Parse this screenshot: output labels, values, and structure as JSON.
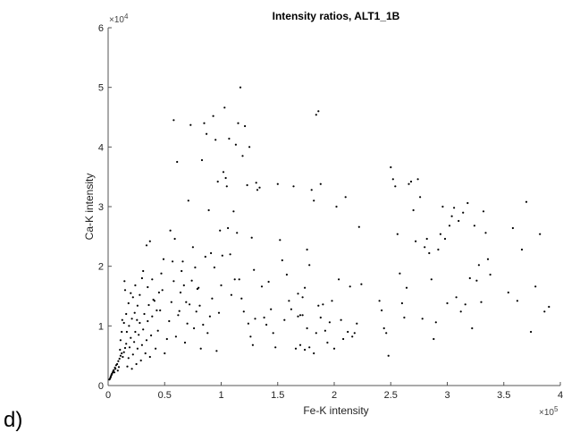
{
  "panel_label": "d)",
  "chart_data": {
    "type": "scatter",
    "title": "Intensity ratios, ALT1_1B",
    "xlabel": "Fe-K intensity",
    "ylabel": "Ca-K intensity",
    "x_multiplier": "×10^5",
    "y_multiplier": "×10^4",
    "x_multiplier_base": "×10",
    "x_multiplier_exp": "5",
    "y_multiplier_base": "×10",
    "y_multiplier_exp": "4",
    "xlim": [
      0,
      400000
    ],
    "ylim": [
      0,
      60000
    ],
    "xticks": [
      0,
      50000,
      100000,
      150000,
      200000,
      250000,
      300000,
      350000,
      400000
    ],
    "xtick_labels": [
      "0",
      "0.5",
      "1",
      "1.5",
      "2",
      "2.5",
      "3",
      "3.5",
      "4"
    ],
    "yticks": [
      0,
      10000,
      20000,
      30000,
      40000,
      50000,
      60000
    ],
    "ytick_labels": [
      "0",
      "1",
      "2",
      "3",
      "4",
      "5",
      "6"
    ],
    "marker_color": "#000000",
    "grid": false,
    "points": [
      [
        1000,
        1000
      ],
      [
        2000,
        1300
      ],
      [
        2500,
        1600
      ],
      [
        3000,
        1800
      ],
      [
        3500,
        2000
      ],
      [
        4000,
        2200
      ],
      [
        1500,
        1100
      ],
      [
        2200,
        1400
      ],
      [
        3200,
        1900
      ],
      [
        4500,
        2400
      ],
      [
        5000,
        2600
      ],
      [
        6000,
        3000
      ],
      [
        7000,
        3400
      ],
      [
        5500,
        2200
      ],
      [
        6500,
        2800
      ],
      [
        8000,
        3600
      ],
      [
        9000,
        4100
      ],
      [
        10000,
        4500
      ],
      [
        11000,
        5000
      ],
      [
        12000,
        5400
      ],
      [
        8500,
        2500
      ],
      [
        9500,
        3100
      ],
      [
        13000,
        4800
      ],
      [
        14000,
        5600
      ],
      [
        15000,
        6300
      ],
      [
        16000,
        7000
      ],
      [
        17000,
        3200
      ],
      [
        18000,
        4600
      ],
      [
        19000,
        6400
      ],
      [
        20000,
        8000
      ],
      [
        21000,
        2800
      ],
      [
        22000,
        5200
      ],
      [
        23000,
        7300
      ],
      [
        24000,
        9000
      ],
      [
        25000,
        3600
      ],
      [
        26000,
        6200
      ],
      [
        27000,
        8500
      ],
      [
        28000,
        10500
      ],
      [
        29000,
        4200
      ],
      [
        30000,
        6800
      ],
      [
        31000,
        9400
      ],
      [
        32000,
        12000
      ],
      [
        33000,
        5400
      ],
      [
        34000,
        7600
      ],
      [
        35000,
        10800
      ],
      [
        36000,
        13500
      ],
      [
        37000,
        4800
      ],
      [
        38000,
        8400
      ],
      [
        39000,
        11600
      ],
      [
        40000,
        14400
      ],
      [
        42000,
        6200
      ],
      [
        44000,
        9200
      ],
      [
        46000,
        12600
      ],
      [
        48000,
        16000
      ],
      [
        50000,
        5400
      ],
      [
        52000,
        7800
      ],
      [
        54000,
        10800
      ],
      [
        56000,
        14000
      ],
      [
        58000,
        17500
      ],
      [
        60000,
        8200
      ],
      [
        62000,
        11800
      ],
      [
        64000,
        15600
      ],
      [
        66000,
        20800
      ],
      [
        68000,
        7200
      ],
      [
        70000,
        10400
      ],
      [
        72000,
        13600
      ],
      [
        74000,
        17600
      ],
      [
        76000,
        9600
      ],
      [
        78000,
        12400
      ],
      [
        80000,
        16400
      ],
      [
        82000,
        6200
      ],
      [
        84000,
        10200
      ],
      [
        86000,
        21600
      ],
      [
        88000,
        8800
      ],
      [
        90000,
        11600
      ],
      [
        92000,
        14600
      ],
      [
        94000,
        19800
      ],
      [
        96000,
        5800
      ],
      [
        98000,
        12200
      ],
      [
        100000,
        16800
      ],
      [
        15000,
        16000
      ],
      [
        14500,
        17500
      ],
      [
        16000,
        12000
      ],
      [
        18000,
        13800
      ],
      [
        20000,
        15500
      ],
      [
        22000,
        14800
      ],
      [
        24000,
        16800
      ],
      [
        26000,
        13400
      ],
      [
        28000,
        15200
      ],
      [
        30000,
        18000
      ],
      [
        12000,
        9000
      ],
      [
        11000,
        7600
      ],
      [
        10500,
        6000
      ],
      [
        12500,
        11000
      ],
      [
        14000,
        10500
      ],
      [
        16500,
        9000
      ],
      [
        18500,
        10000
      ],
      [
        21000,
        11200
      ],
      [
        23500,
        12200
      ],
      [
        25500,
        11000
      ],
      [
        34000,
        23500
      ],
      [
        37000,
        24200
      ],
      [
        31000,
        19200
      ],
      [
        35000,
        16500
      ],
      [
        39000,
        17800
      ],
      [
        41000,
        14200
      ],
      [
        43000,
        12600
      ],
      [
        45000,
        15600
      ],
      [
        47000,
        18800
      ],
      [
        49000,
        21200
      ],
      [
        58000,
        44500
      ],
      [
        61000,
        37500
      ],
      [
        55000,
        26000
      ],
      [
        57000,
        20800
      ],
      [
        59000,
        24600
      ],
      [
        63000,
        12500
      ],
      [
        65000,
        19200
      ],
      [
        67000,
        16800
      ],
      [
        69000,
        14000
      ],
      [
        71000,
        31000
      ],
      [
        73000,
        43700
      ],
      [
        75000,
        23200
      ],
      [
        77000,
        19800
      ],
      [
        79000,
        16200
      ],
      [
        81000,
        13400
      ],
      [
        83000,
        37800
      ],
      [
        85000,
        44000
      ],
      [
        87000,
        42200
      ],
      [
        89000,
        29400
      ],
      [
        91000,
        22200
      ],
      [
        93000,
        45200
      ],
      [
        95000,
        41200
      ],
      [
        97000,
        34200
      ],
      [
        99000,
        26000
      ],
      [
        101000,
        21800
      ],
      [
        103000,
        46600
      ],
      [
        105000,
        33400
      ],
      [
        107000,
        41400
      ],
      [
        109000,
        15200
      ],
      [
        111000,
        29200
      ],
      [
        113000,
        40400
      ],
      [
        115000,
        44000
      ],
      [
        117000,
        50000
      ],
      [
        119000,
        38500
      ],
      [
        121000,
        43500
      ],
      [
        123000,
        33600
      ],
      [
        125000,
        40000
      ],
      [
        127000,
        24800
      ],
      [
        129000,
        19400
      ],
      [
        131000,
        34000
      ],
      [
        102000,
        35800
      ],
      [
        104000,
        34800
      ],
      [
        106000,
        26400
      ],
      [
        108000,
        22000
      ],
      [
        112000,
        17800
      ],
      [
        114000,
        25600
      ],
      [
        116000,
        17800
      ],
      [
        118000,
        14600
      ],
      [
        120000,
        12400
      ],
      [
        124000,
        10400
      ],
      [
        126000,
        8200
      ],
      [
        128000,
        6800
      ],
      [
        130000,
        11200
      ],
      [
        132000,
        32800
      ],
      [
        134000,
        33200
      ],
      [
        136000,
        16600
      ],
      [
        138000,
        11400
      ],
      [
        140000,
        10200
      ],
      [
        142000,
        17400
      ],
      [
        144000,
        12800
      ],
      [
        146000,
        8800
      ],
      [
        148000,
        6400
      ],
      [
        150000,
        33800
      ],
      [
        152000,
        24400
      ],
      [
        154000,
        21000
      ],
      [
        156000,
        11000
      ],
      [
        158000,
        18600
      ],
      [
        160000,
        14200
      ],
      [
        162000,
        12800
      ],
      [
        164000,
        33400
      ],
      [
        166000,
        6200
      ],
      [
        168000,
        15400
      ],
      [
        170000,
        11800
      ],
      [
        172000,
        14800
      ],
      [
        174000,
        16400
      ],
      [
        176000,
        22800
      ],
      [
        178000,
        20200
      ],
      [
        180000,
        32800
      ],
      [
        182000,
        31000
      ],
      [
        184000,
        45400
      ],
      [
        186000,
        46000
      ],
      [
        188000,
        33800
      ],
      [
        190000,
        13600
      ],
      [
        192000,
        9200
      ],
      [
        194000,
        7200
      ],
      [
        196000,
        10600
      ],
      [
        198000,
        14200
      ],
      [
        200000,
        6200
      ],
      [
        202000,
        30000
      ],
      [
        204000,
        17800
      ],
      [
        206000,
        11000
      ],
      [
        208000,
        7800
      ],
      [
        210000,
        31600
      ],
      [
        212000,
        9000
      ],
      [
        214000,
        16600
      ],
      [
        216000,
        8200
      ],
      [
        218000,
        8800
      ],
      [
        220000,
        10400
      ],
      [
        222000,
        26600
      ],
      [
        224000,
        17000
      ],
      [
        182000,
        5400
      ],
      [
        184000,
        8800
      ],
      [
        186000,
        13400
      ],
      [
        188000,
        11400
      ],
      [
        178000,
        6400
      ],
      [
        176000,
        9600
      ],
      [
        174000,
        6000
      ],
      [
        172000,
        11800
      ],
      [
        170000,
        6800
      ],
      [
        168000,
        11600
      ],
      [
        250000,
        36600
      ],
      [
        252000,
        34600
      ],
      [
        254000,
        33400
      ],
      [
        256000,
        25400
      ],
      [
        258000,
        18800
      ],
      [
        260000,
        13800
      ],
      [
        262000,
        11400
      ],
      [
        264000,
        16400
      ],
      [
        266000,
        33800
      ],
      [
        268000,
        34200
      ],
      [
        270000,
        29400
      ],
      [
        272000,
        24200
      ],
      [
        274000,
        34600
      ],
      [
        276000,
        31600
      ],
      [
        278000,
        11200
      ],
      [
        280000,
        23200
      ],
      [
        282000,
        24600
      ],
      [
        284000,
        22200
      ],
      [
        286000,
        17800
      ],
      [
        288000,
        7800
      ],
      [
        290000,
        10600
      ],
      [
        292000,
        22800
      ],
      [
        294000,
        25400
      ],
      [
        296000,
        30000
      ],
      [
        298000,
        24600
      ],
      [
        300000,
        13800
      ],
      [
        302000,
        26800
      ],
      [
        304000,
        28400
      ],
      [
        306000,
        29800
      ],
      [
        308000,
        14800
      ],
      [
        310000,
        27600
      ],
      [
        312000,
        12400
      ],
      [
        314000,
        29000
      ],
      [
        316000,
        13600
      ],
      [
        318000,
        30600
      ],
      [
        320000,
        18000
      ],
      [
        322000,
        9600
      ],
      [
        324000,
        26800
      ],
      [
        326000,
        17600
      ],
      [
        328000,
        20200
      ],
      [
        330000,
        14000
      ],
      [
        332000,
        29200
      ],
      [
        334000,
        25600
      ],
      [
        336000,
        21200
      ],
      [
        338000,
        18600
      ],
      [
        354000,
        15600
      ],
      [
        358000,
        26400
      ],
      [
        362000,
        14200
      ],
      [
        366000,
        22800
      ],
      [
        370000,
        30800
      ],
      [
        374000,
        9000
      ],
      [
        378000,
        16600
      ],
      [
        382000,
        25400
      ],
      [
        386000,
        12400
      ],
      [
        390000,
        13200
      ],
      [
        246000,
        8800
      ],
      [
        248000,
        5000
      ],
      [
        242000,
        12600
      ],
      [
        240000,
        14200
      ],
      [
        244000,
        9600
      ]
    ]
  }
}
